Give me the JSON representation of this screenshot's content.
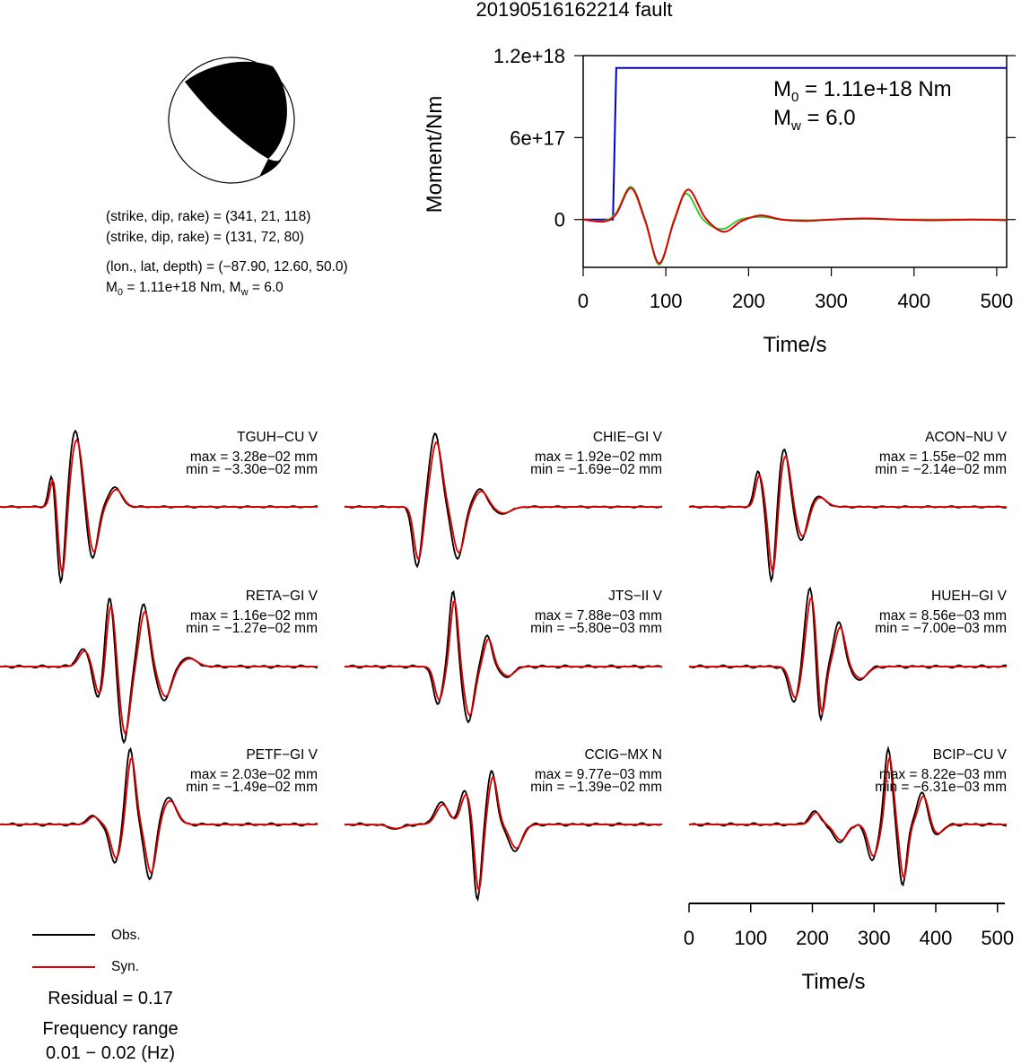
{
  "title": "20190516162214 fault",
  "mechanism": {
    "plane1": "(strike, dip, rake) = (341, 21, 118)",
    "plane2": "(strike, dip, rake) = (131, 72, 80)",
    "location": "(lon., lat, depth) = (−87.90, 12.60, 50.0)",
    "moment_prefix": "M",
    "moment_sub": "0",
    "moment_mid": " = 1.11e+18 Nm, M",
    "moment_sub2": "w",
    "moment_suffix": " = 6.0"
  },
  "moment_plot": {
    "annot_m0_main": "M",
    "annot_m0_sub": "0",
    "annot_m0_value": " = 1.11e+18 Nm",
    "annot_mw_main": "M",
    "annot_mw_sub": "w",
    "annot_mw_value": " = 6.0"
  },
  "stations": [
    {
      "name": "TGUH−CU V",
      "max": "max = 3.28e−02 mm",
      "min": "min = −3.30e−02 mm"
    },
    {
      "name": "CHIE−GI V",
      "max": "max = 1.92e−02 mm",
      "min": "min = −1.69e−02 mm"
    },
    {
      "name": "ACON−NU V",
      "max": "max = 1.55e−02 mm",
      "min": "min = −2.14e−02 mm"
    },
    {
      "name": "RETA−GI V",
      "max": "max = 1.16e−02 mm",
      "min": "min = −1.27e−02 mm"
    },
    {
      "name": "JTS−II V",
      "max": "max = 7.88e−03 mm",
      "min": "min = −5.80e−03 mm"
    },
    {
      "name": "HUEH−GI V",
      "max": "max = 8.56e−03 mm",
      "min": "min = −7.00e−03 mm"
    },
    {
      "name": "PETF−GI V",
      "max": "max = 2.03e−02 mm",
      "min": "min = −1.49e−02 mm"
    },
    {
      "name": "CCIG−MX N",
      "max": "max = 9.77e−03 mm",
      "min": "min = −1.39e−02 mm"
    },
    {
      "name": "BCIP−CU V",
      "max": "max = 8.22e−03 mm",
      "min": "min = −6.31e−03 mm"
    }
  ],
  "legend": {
    "obs": "Obs.",
    "syn": "Syn."
  },
  "residual": "Residual = 0.17",
  "freq_title": "Frequency range",
  "freq_value": "0.01 − 0.02 (Hz)",
  "colors": {
    "obs": "#000000",
    "syn": "#e00000",
    "moment": "#0000cc",
    "green": "#33cc33"
  },
  "chart_data": [
    {
      "type": "line",
      "title": "",
      "xlabel": "Time/s",
      "ylabel": "Moment/Nm",
      "xlim": [
        0,
        512
      ],
      "ylim": [
        -3.5e+17,
        1.2e+18
      ],
      "x_ticks": [
        "0",
        "100",
        "200",
        "300",
        "400",
        "500"
      ],
      "y_ticks": [
        "0",
        "6e+17",
        "1.2e+18"
      ],
      "series": [
        {
          "x": [
            0,
            36,
            40,
            512
          ],
          "y": [
            0,
            0,
            1.11e+18,
            1.11e+18
          ]
        },
        {
          "x": [
            0,
            25,
            40,
            58,
            75,
            92,
            110,
            125,
            145,
            168,
            190,
            215,
            240,
            270,
            300,
            340,
            380,
            420,
            470,
            512
          ],
          "y": [
            0,
            -1e+16,
            5e+16,
            2.4e+17,
            0,
            -3.3e+17,
            0,
            1.9e+17,
            0,
            -7e+16,
            0,
            2e+16,
            0,
            -5000000000000000.0,
            0,
            5000000000000000.0,
            0,
            0,
            0,
            0
          ]
        },
        {
          "x": [
            0,
            25,
            40,
            58,
            75,
            92,
            110,
            127,
            148,
            170,
            192,
            215,
            240,
            270,
            300,
            340,
            380,
            420,
            470,
            512
          ],
          "y": [
            0,
            -1.5e+16,
            4e+16,
            2.3e+17,
            -1e+16,
            -3.2e+17,
            -1e+16,
            2.2e+17,
            1e+16,
            -9e+16,
            -1e+16,
            3e+16,
            0,
            -1e+16,
            0,
            8000000000000000.0,
            0,
            -5000000000000000.0,
            0,
            -5000000000000000.0
          ]
        }
      ]
    },
    {
      "type": "line",
      "xlabel": "Time/s",
      "xlim": [
        0,
        512
      ],
      "x_ticks": [
        "0",
        "100",
        "200",
        "300",
        "400",
        "500"
      ]
    }
  ]
}
